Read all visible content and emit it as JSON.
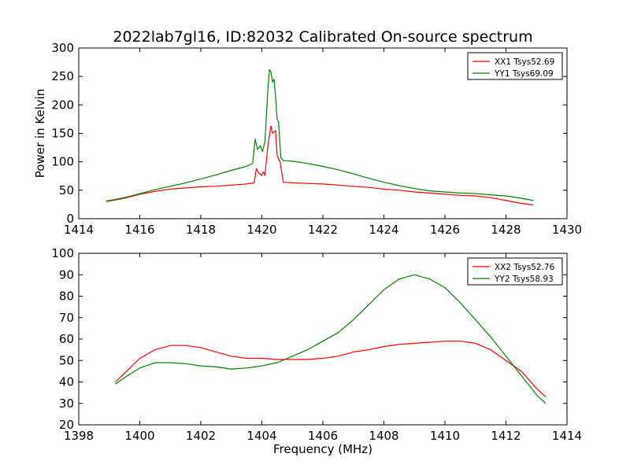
{
  "title": "2022lab7gl16, ID:82032 Calibrated On-source spectrum",
  "chart_data": [
    {
      "type": "line",
      "ylabel": "Power in Kelvin",
      "xlabel": "",
      "xlim": [
        1414,
        1430
      ],
      "ylim": [
        0,
        300
      ],
      "xticks": [
        "1414",
        "1416",
        "1418",
        "1420",
        "1422",
        "1424",
        "1426",
        "1428",
        "1430"
      ],
      "yticks": [
        "0",
        "50",
        "100",
        "150",
        "200",
        "250",
        "300"
      ],
      "grid": false,
      "legend": "top-right",
      "series": [
        {
          "name": "XX1 Tsys52.69",
          "color": "#ff0000",
          "points": [
            [
              1414.9,
              30
            ],
            [
              1415.5,
              36
            ],
            [
              1416,
              43
            ],
            [
              1416.5,
              48
            ],
            [
              1417,
              52
            ],
            [
              1417.5,
              54
            ],
            [
              1418,
              56
            ],
            [
              1418.5,
              57
            ],
            [
              1419,
              59
            ],
            [
              1419.5,
              61
            ],
            [
              1419.75,
              63
            ],
            [
              1419.82,
              88
            ],
            [
              1419.9,
              80
            ],
            [
              1420,
              76
            ],
            [
              1420.05,
              82
            ],
            [
              1420.1,
              76
            ],
            [
              1420.2,
              130
            ],
            [
              1420.3,
              163
            ],
            [
              1420.35,
              150
            ],
            [
              1420.45,
              155
            ],
            [
              1420.5,
              110
            ],
            [
              1420.6,
              100
            ],
            [
              1420.7,
              64
            ],
            [
              1421,
              63
            ],
            [
              1421.5,
              62
            ],
            [
              1422,
              61
            ],
            [
              1422.5,
              59
            ],
            [
              1423,
              57
            ],
            [
              1423.5,
              55
            ],
            [
              1424,
              52
            ],
            [
              1424.5,
              50
            ],
            [
              1425,
              47
            ],
            [
              1425.5,
              45
            ],
            [
              1426,
              43
            ],
            [
              1426.5,
              41
            ],
            [
              1427,
              40
            ],
            [
              1427.5,
              37
            ],
            [
              1428,
              32
            ],
            [
              1428.5,
              27
            ],
            [
              1428.9,
              24
            ]
          ]
        },
        {
          "name": "YY1 Tsys69.09",
          "color": "#008000",
          "points": [
            [
              1414.9,
              31
            ],
            [
              1415.5,
              37
            ],
            [
              1416,
              44
            ],
            [
              1416.5,
              51
            ],
            [
              1417,
              57
            ],
            [
              1417.5,
              63
            ],
            [
              1418,
              70
            ],
            [
              1418.5,
              77
            ],
            [
              1419,
              85
            ],
            [
              1419.5,
              92
            ],
            [
              1419.7,
              97
            ],
            [
              1419.78,
              140
            ],
            [
              1419.86,
              122
            ],
            [
              1419.95,
              128
            ],
            [
              1420.02,
              118
            ],
            [
              1420.1,
              135
            ],
            [
              1420.2,
              230
            ],
            [
              1420.25,
              262
            ],
            [
              1420.3,
              258
            ],
            [
              1420.35,
              240
            ],
            [
              1420.4,
              245
            ],
            [
              1420.45,
              215
            ],
            [
              1420.5,
              175
            ],
            [
              1420.55,
              170
            ],
            [
              1420.62,
              108
            ],
            [
              1420.7,
              102
            ],
            [
              1421,
              101
            ],
            [
              1421.5,
              97
            ],
            [
              1422,
              92
            ],
            [
              1422.5,
              86
            ],
            [
              1423,
              79
            ],
            [
              1423.5,
              71
            ],
            [
              1424,
              64
            ],
            [
              1424.5,
              58
            ],
            [
              1425,
              53
            ],
            [
              1425.5,
              49
            ],
            [
              1426,
              47
            ],
            [
              1426.5,
              45
            ],
            [
              1427,
              44
            ],
            [
              1427.5,
              42
            ],
            [
              1428,
              40
            ],
            [
              1428.5,
              36
            ],
            [
              1428.9,
              32
            ]
          ]
        }
      ]
    },
    {
      "type": "line",
      "ylabel": "",
      "xlabel": "Frequency (MHz)",
      "xlim": [
        1398,
        1414
      ],
      "ylim": [
        20,
        100
      ],
      "xticks": [
        "1398",
        "1400",
        "1402",
        "1404",
        "1406",
        "1408",
        "1410",
        "1412",
        "1414"
      ],
      "yticks": [
        "20",
        "30",
        "40",
        "50",
        "60",
        "70",
        "80",
        "90",
        "100"
      ],
      "grid": false,
      "legend": "top-right",
      "series": [
        {
          "name": "XX2 Tsys52.76",
          "color": "#ff0000",
          "points": [
            [
              1399.2,
              40
            ],
            [
              1399.5,
              44
            ],
            [
              1400,
              51
            ],
            [
              1400.5,
              55
            ],
            [
              1401,
              57
            ],
            [
              1401.5,
              57
            ],
            [
              1402,
              56
            ],
            [
              1402.5,
              54
            ],
            [
              1403,
              52
            ],
            [
              1403.5,
              51
            ],
            [
              1404,
              51
            ],
            [
              1404.5,
              50.5
            ],
            [
              1405,
              50.5
            ],
            [
              1405.5,
              50.5
            ],
            [
              1406,
              51
            ],
            [
              1406.5,
              52
            ],
            [
              1407,
              54
            ],
            [
              1407.5,
              55
            ],
            [
              1408,
              56.5
            ],
            [
              1408.5,
              57.5
            ],
            [
              1409,
              58
            ],
            [
              1409.5,
              58.5
            ],
            [
              1410,
              59
            ],
            [
              1410.5,
              59
            ],
            [
              1411,
              58
            ],
            [
              1411.5,
              55
            ],
            [
              1412,
              50
            ],
            [
              1412.5,
              45
            ],
            [
              1413,
              37
            ],
            [
              1413.3,
              33
            ]
          ]
        },
        {
          "name": "YY2 Tsys58.93",
          "color": "#008000",
          "points": [
            [
              1399.2,
              39
            ],
            [
              1399.5,
              42
            ],
            [
              1400,
              46.5
            ],
            [
              1400.5,
              49
            ],
            [
              1401,
              49
            ],
            [
              1401.5,
              48.5
            ],
            [
              1402,
              47.5
            ],
            [
              1402.5,
              47
            ],
            [
              1403,
              46
            ],
            [
              1403.5,
              46.5
            ],
            [
              1404,
              47.5
            ],
            [
              1404.5,
              49
            ],
            [
              1405,
              52
            ],
            [
              1405.5,
              55
            ],
            [
              1406,
              59
            ],
            [
              1406.5,
              63
            ],
            [
              1407,
              69
            ],
            [
              1407.5,
              76
            ],
            [
              1408,
              83
            ],
            [
              1408.5,
              88
            ],
            [
              1409,
              90
            ],
            [
              1409.5,
              88
            ],
            [
              1410,
              84
            ],
            [
              1410.5,
              77
            ],
            [
              1411,
              69
            ],
            [
              1411.5,
              61
            ],
            [
              1412,
              52
            ],
            [
              1412.5,
              43
            ],
            [
              1413,
              34
            ],
            [
              1413.3,
              30
            ]
          ]
        }
      ]
    }
  ]
}
